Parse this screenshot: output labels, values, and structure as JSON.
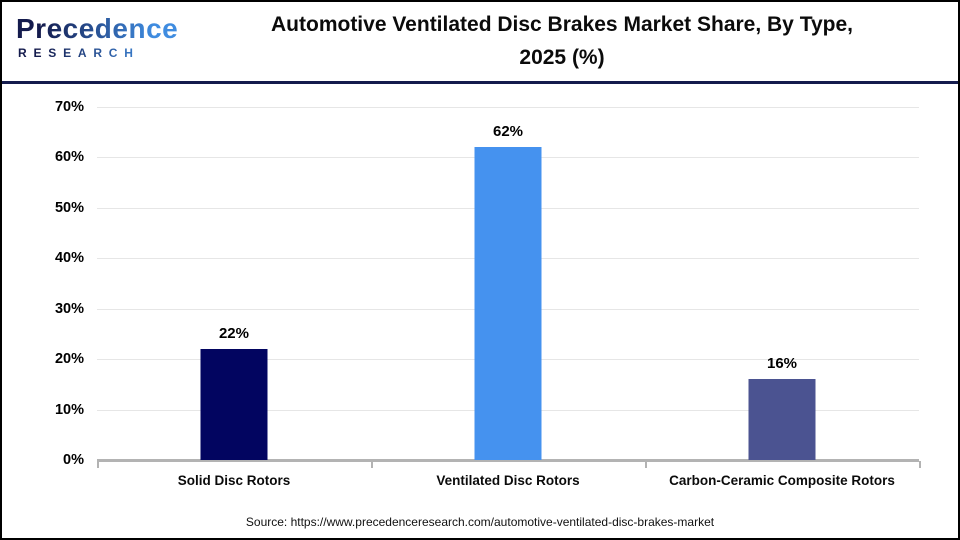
{
  "header": {
    "logo": {
      "word": "Precedence",
      "subword": "RESEARCH"
    },
    "title_line1": "Automotive Ventilated Disc Brakes Market Share, By Type,",
    "title_line2": "2025 (%)"
  },
  "chart_data": {
    "type": "bar",
    "title": "Automotive Ventilated Disc Brakes Market Share, By Type, 2025 (%)",
    "categories": [
      "Solid Disc Rotors",
      "Ventilated Disc Rotors",
      "Carbon-Ceramic Composite Rotors"
    ],
    "values": [
      22,
      62,
      16
    ],
    "value_labels": [
      "22%",
      "62%",
      "16%"
    ],
    "bar_colors": [
      "#020560",
      "#4592ef",
      "#4b5391"
    ],
    "xlabel": "",
    "ylabel": "",
    "ylim": [
      0,
      70
    ],
    "ytick_interval": 10,
    "ytick_labels": [
      "0%",
      "10%",
      "20%",
      "30%",
      "40%",
      "50%",
      "60%",
      "70%"
    ],
    "grid": "horizontal",
    "legend": "none"
  },
  "footer": {
    "source": "Source: https://www.precedenceresearch.com/automotive-ventilated-disc-brakes-market"
  },
  "colors": {
    "header_rule": "#141b4d",
    "gridline": "#e6e6e6",
    "axis_line": "#b3b3b3",
    "logo_gradient_start": "#141b4d",
    "logo_gradient_end": "#3f8ce0"
  }
}
